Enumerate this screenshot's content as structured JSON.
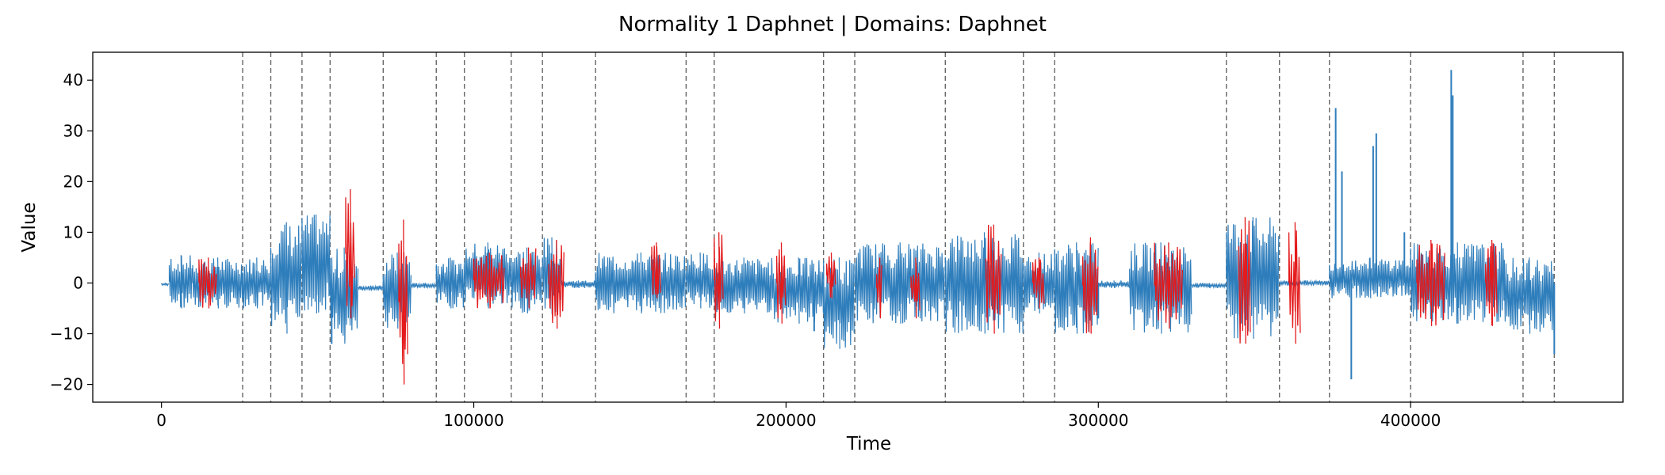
{
  "chart_data": {
    "type": "line",
    "title": "Normality 1 Daphnet  |  Domains: Daphnet",
    "xlabel": "Time",
    "ylabel": "Value",
    "xlim": [
      -22000,
      468000
    ],
    "ylim": [
      -23.5,
      45.5
    ],
    "xticks": [
      0,
      100000,
      200000,
      300000,
      400000
    ],
    "yticks": [
      -20,
      -10,
      0,
      10,
      20,
      30,
      40
    ],
    "grid": false,
    "colors": {
      "signal": "#2f7ebc",
      "anomaly": "#e41a1c",
      "boundary": "#666666"
    },
    "domain_boundaries": [
      26000,
      35000,
      45000,
      54000,
      71000,
      88000,
      97000,
      112000,
      122000,
      139000,
      168000,
      177000,
      212000,
      222000,
      251000,
      276000,
      286000,
      341000,
      358000,
      374000,
      400000,
      436000,
      446000
    ],
    "signal_segments": [
      {
        "x": [
          0,
          2500
        ],
        "lo": -0.5,
        "hi": 0
      },
      {
        "x": [
          2500,
          10000
        ],
        "lo": -5,
        "hi": 5.5
      },
      {
        "x": [
          10000,
          26000
        ],
        "lo": -5,
        "hi": 5
      },
      {
        "x": [
          26000,
          35000
        ],
        "lo": -5,
        "hi": 5
      },
      {
        "x": [
          35000,
          45000
        ],
        "lo": -10,
        "hi": 12
      },
      {
        "x": [
          45000,
          54000
        ],
        "lo": -6,
        "hi": 13.5
      },
      {
        "x": [
          54000,
          63000
        ],
        "lo": -12,
        "hi": 7
      },
      {
        "x": [
          63000,
          71000
        ],
        "lo": -1.5,
        "hi": -0.5
      },
      {
        "x": [
          71000,
          80000
        ],
        "lo": -9,
        "hi": 6
      },
      {
        "x": [
          80000,
          88000
        ],
        "lo": -1,
        "hi": 0
      },
      {
        "x": [
          88000,
          97000
        ],
        "lo": -5,
        "hi": 5
      },
      {
        "x": [
          97000,
          112000
        ],
        "lo": -5,
        "hi": 8
      },
      {
        "x": [
          112000,
          122000
        ],
        "lo": -6,
        "hi": 7
      },
      {
        "x": [
          122000,
          128000
        ],
        "lo": -7,
        "hi": 9
      },
      {
        "x": [
          128000,
          139000
        ],
        "lo": -1,
        "hi": 0.5
      },
      {
        "x": [
          139000,
          168000
        ],
        "lo": -6,
        "hi": 6
      },
      {
        "x": [
          168000,
          177000
        ],
        "lo": -5,
        "hi": 6
      },
      {
        "x": [
          177000,
          196000
        ],
        "lo": -6,
        "hi": 5
      },
      {
        "x": [
          196000,
          212000
        ],
        "lo": -8,
        "hi": 5
      },
      {
        "x": [
          212000,
          222000
        ],
        "lo": -13,
        "hi": 5
      },
      {
        "x": [
          222000,
          251000
        ],
        "lo": -8,
        "hi": 8
      },
      {
        "x": [
          251000,
          276000
        ],
        "lo": -10,
        "hi": 10
      },
      {
        "x": [
          276000,
          286000
        ],
        "lo": -6,
        "hi": 6
      },
      {
        "x": [
          286000,
          300000
        ],
        "lo": -10,
        "hi": 8
      },
      {
        "x": [
          300000,
          310000
        ],
        "lo": -1,
        "hi": 0.5
      },
      {
        "x": [
          310000,
          330000
        ],
        "lo": -10,
        "hi": 8
      },
      {
        "x": [
          330000,
          341000
        ],
        "lo": -1,
        "hi": 0
      },
      {
        "x": [
          341000,
          358000
        ],
        "lo": -11,
        "hi": 13
      },
      {
        "x": [
          358000,
          374000
        ],
        "lo": -0.5,
        "hi": 0.5
      },
      {
        "x": [
          374000,
          400000
        ],
        "lo": -3,
        "hi": 5
      },
      {
        "x": [
          400000,
          430000
        ],
        "lo": -8,
        "hi": 8
      },
      {
        "x": [
          430000,
          446000
        ],
        "lo": -10,
        "hi": 5
      }
    ],
    "spikes": [
      {
        "x": 54500,
        "y": -12
      },
      {
        "x": 209000,
        "y": -9.5
      },
      {
        "x": 296000,
        "y": -7
      },
      {
        "x": 300000,
        "y": -7
      },
      {
        "x": 376000,
        "y": 34.5
      },
      {
        "x": 378000,
        "y": 22
      },
      {
        "x": 381000,
        "y": -19
      },
      {
        "x": 388000,
        "y": 27
      },
      {
        "x": 389000,
        "y": 29.5
      },
      {
        "x": 398000,
        "y": 10
      },
      {
        "x": 413000,
        "y": 42
      },
      {
        "x": 413500,
        "y": 37
      },
      {
        "x": 446000,
        "y": -14
      }
    ],
    "anomaly_segments": [
      {
        "x": [
          12000,
          18000
        ],
        "lo": -5,
        "hi": 5
      },
      {
        "x": [
          59000,
          62000
        ],
        "lo": -7,
        "hi": 18.5
      },
      {
        "x": [
          76000,
          79000
        ],
        "lo": -20,
        "hi": 12.5
      },
      {
        "x": [
          100000,
          110000
        ],
        "lo": -5,
        "hi": 6
      },
      {
        "x": [
          115000,
          120000
        ],
        "lo": -5,
        "hi": 7
      },
      {
        "x": [
          124000,
          129000
        ],
        "lo": -9,
        "hi": 8.5
      },
      {
        "x": [
          157000,
          160000
        ],
        "lo": -3,
        "hi": 8
      },
      {
        "x": [
          177000,
          180000
        ],
        "lo": -9,
        "hi": 10
      },
      {
        "x": [
          197000,
          200000
        ],
        "lo": -8,
        "hi": 8
      },
      {
        "x": [
          213000,
          216000
        ],
        "lo": -3,
        "hi": 6
      },
      {
        "x": [
          229000,
          231000
        ],
        "lo": -7,
        "hi": 5
      },
      {
        "x": [
          240000,
          243000
        ],
        "lo": -7,
        "hi": 5
      },
      {
        "x": [
          264000,
          269000
        ],
        "lo": -10,
        "hi": 11.5
      },
      {
        "x": [
          279000,
          283000
        ],
        "lo": -5,
        "hi": 5
      },
      {
        "x": [
          295000,
          300000
        ],
        "lo": -10,
        "hi": 9
      },
      {
        "x": [
          318000,
          327000
        ],
        "lo": -9,
        "hi": 8
      },
      {
        "x": [
          345000,
          349000
        ],
        "lo": -12,
        "hi": 13
      },
      {
        "x": [
          361000,
          365000
        ],
        "lo": -12,
        "hi": 12
      },
      {
        "x": [
          402000,
          411000
        ],
        "lo": -8.5,
        "hi": 8.5
      },
      {
        "x": [
          424000,
          428000
        ],
        "lo": -8.5,
        "hi": 8.5
      }
    ]
  }
}
